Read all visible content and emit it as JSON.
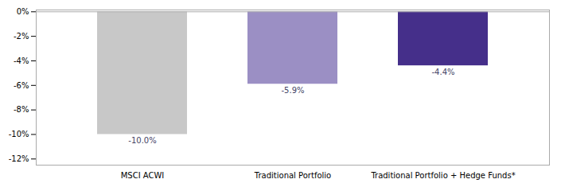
{
  "chart_data": {
    "type": "bar",
    "categories": [
      "MSCI ACWI",
      "Traditional Portfolio",
      "Traditional Portfolio + Hedge Funds*"
    ],
    "values": [
      -10.0,
      -5.9,
      -4.4
    ],
    "value_labels": [
      "-10.0%",
      "-5.9%",
      "-4.4%"
    ],
    "colors": [
      "#c8c8c8",
      "#9b8fc4",
      "#452f8a"
    ],
    "ylim": [
      -12.5,
      0.15
    ],
    "yticks": [
      {
        "value": 0,
        "label": "0%"
      },
      {
        "value": -2,
        "label": "-2%"
      },
      {
        "value": -4,
        "label": "-4%"
      },
      {
        "value": -6,
        "label": "-6%"
      },
      {
        "value": -8,
        "label": "-8%"
      },
      {
        "value": -10,
        "label": "-10%"
      },
      {
        "value": -12,
        "label": "-12%"
      }
    ],
    "grid": false,
    "data_labels": true
  }
}
